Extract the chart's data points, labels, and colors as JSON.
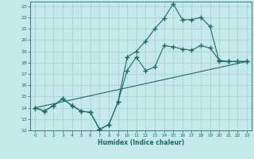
{
  "xlabel": "Humidex (Indice chaleur)",
  "bg_color": "#c5e8e8",
  "line_color": "#1a6b6b",
  "grid_color": "#aacfcf",
  "xlim": [
    -0.5,
    23.5
  ],
  "ylim": [
    12,
    23.4
  ],
  "xticks": [
    0,
    1,
    2,
    3,
    4,
    5,
    6,
    7,
    8,
    9,
    10,
    11,
    12,
    13,
    14,
    15,
    16,
    17,
    18,
    19,
    20,
    21,
    22,
    23
  ],
  "yticks": [
    12,
    13,
    14,
    15,
    16,
    17,
    18,
    19,
    20,
    21,
    22,
    23
  ],
  "line1_x": [
    0,
    1,
    2,
    3,
    4,
    5,
    6,
    7,
    8,
    9,
    10,
    11,
    12,
    13,
    14,
    15,
    16,
    17,
    18,
    19,
    20,
    21,
    22,
    23
  ],
  "line1_y": [
    14.0,
    13.7,
    14.2,
    14.8,
    14.2,
    13.7,
    13.6,
    12.1,
    12.5,
    14.5,
    17.3,
    18.5,
    17.3,
    17.6,
    19.5,
    19.4,
    19.2,
    19.1,
    19.5,
    19.3,
    18.2,
    18.1,
    18.1,
    18.1
  ],
  "line2_x": [
    0,
    1,
    2,
    3,
    4,
    5,
    6,
    7,
    8,
    9,
    10,
    11,
    12,
    13,
    14,
    15,
    16,
    17,
    18,
    19,
    20,
    21,
    22,
    23
  ],
  "line2_y": [
    14.0,
    13.7,
    14.2,
    14.8,
    14.2,
    13.7,
    13.6,
    12.1,
    12.5,
    14.5,
    18.5,
    19.0,
    19.9,
    21.0,
    21.9,
    23.2,
    21.8,
    21.8,
    22.0,
    21.2,
    18.1,
    18.1,
    18.1,
    18.1
  ],
  "line3_x": [
    0,
    23
  ],
  "line3_y": [
    14.0,
    18.1
  ],
  "markersize": 2.0,
  "linewidth": 0.8
}
